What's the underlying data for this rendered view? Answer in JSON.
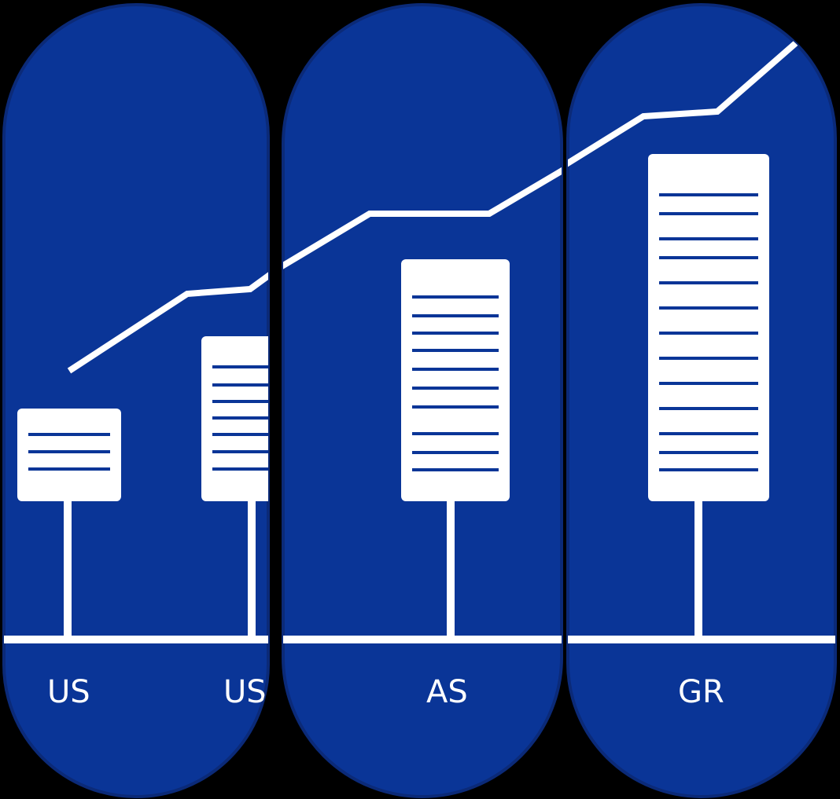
{
  "colors": {
    "background": "#000000",
    "panel_fill": "#0a3597",
    "panel_edge": "#0b2a78",
    "foreground": "#ffffff",
    "stripe": "#0a3597"
  },
  "icons": {
    "panels": "three-rounded-pill-panels",
    "boards": "signboard-icon",
    "trend": "rising-trend-line-icon"
  },
  "labels": {
    "panel1_left": "US",
    "panel1_right": "US",
    "panel2": "AS",
    "panel3": "GR"
  }
}
